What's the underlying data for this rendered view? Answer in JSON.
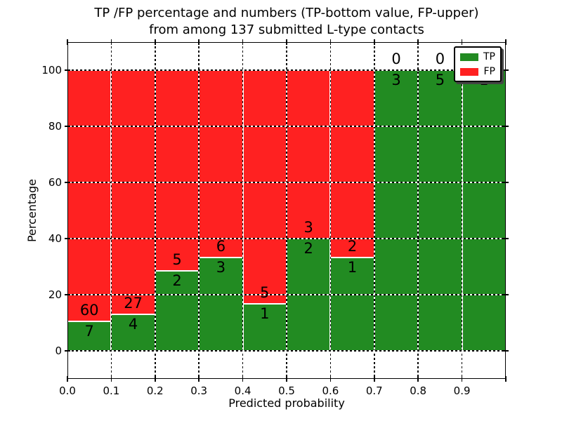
{
  "title": {
    "line1": "TP /FP percentage and numbers (TP-bottom value, FP-upper)",
    "line2": "from among 137 submitted L-type contacts"
  },
  "axes": {
    "xlabel": "Predicted probability",
    "ylabel": "Percentage",
    "x_tick_labels": [
      "0.0",
      "0.1",
      "0.2",
      "0.3",
      "0.4",
      "0.5",
      "0.6",
      "0.7",
      "0.8",
      "0.9"
    ],
    "y_tick_labels": [
      "0",
      "20",
      "40",
      "60",
      "80",
      "100"
    ]
  },
  "legend": {
    "entries": [
      {
        "label": "TP",
        "color": "#228b22"
      },
      {
        "label": "FP",
        "color": "#ff2121"
      }
    ]
  },
  "chart_data": {
    "type": "bar",
    "stacked": true,
    "normalized": "each bar scaled to 100%",
    "title": "TP /FP percentage and numbers (TP-bottom value, FP-upper) from among 137 submitted L-type contacts",
    "xlabel": "Predicted probability",
    "ylabel": "Percentage",
    "bin_edges": [
      0.0,
      0.1,
      0.2,
      0.3,
      0.4,
      0.5,
      0.6,
      0.7,
      0.8,
      0.9,
      1.0
    ],
    "series": [
      {
        "name": "TP",
        "color": "#228b22",
        "counts": [
          7,
          4,
          2,
          3,
          1,
          2,
          1,
          3,
          5,
          1
        ]
      },
      {
        "name": "FP",
        "color": "#ff2121",
        "counts": [
          60,
          27,
          5,
          6,
          5,
          3,
          2,
          0,
          0,
          0
        ]
      }
    ],
    "tp_percent_of_bin": [
      10.4,
      12.9,
      28.6,
      33.3,
      16.7,
      40.0,
      33.3,
      100.0,
      100.0,
      100.0
    ],
    "total_contacts": 137,
    "xlim": [
      0.0,
      1.0
    ],
    "ylim": [
      -10,
      110
    ],
    "x_ticks": [
      0.0,
      0.1,
      0.2,
      0.3,
      0.4,
      0.5,
      0.6,
      0.7,
      0.8,
      0.9,
      1.0
    ],
    "y_ticks": [
      0,
      20,
      40,
      60,
      80,
      100
    ],
    "grid": true,
    "grid_style": "dotted",
    "legend_position": "upper right"
  }
}
